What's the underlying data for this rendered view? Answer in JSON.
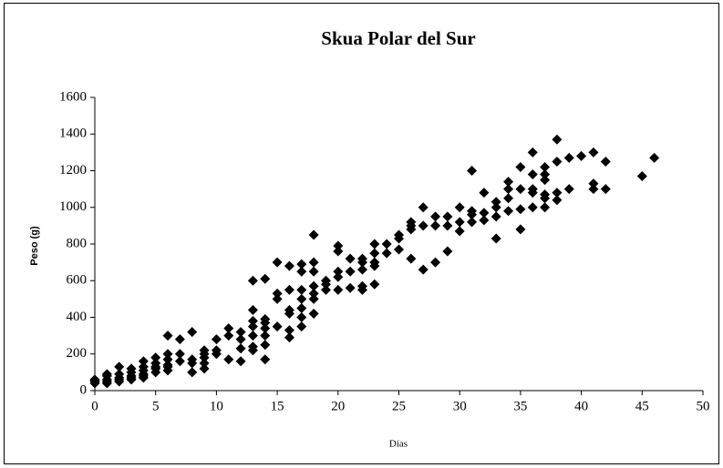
{
  "chart_data": {
    "type": "scatter",
    "title": "Skua Polar del Sur",
    "x_label": "Días",
    "y_label": "Peso (g)",
    "color": "#000000",
    "marker": "diamond",
    "xlim": [
      0,
      50
    ],
    "xticks": [
      0,
      5,
      10,
      15,
      20,
      25,
      30,
      35,
      40,
      45,
      50
    ],
    "ylim": [
      0,
      1600
    ],
    "yticks": [
      0,
      200,
      400,
      600,
      800,
      1000,
      1200,
      1400,
      1600
    ],
    "grid": false,
    "x": [
      0,
      0,
      0,
      0,
      1,
      1,
      1,
      1,
      1,
      2,
      2,
      2,
      2,
      2,
      3,
      3,
      3,
      3,
      3,
      4,
      4,
      4,
      4,
      4,
      4,
      5,
      5,
      5,
      5,
      5,
      6,
      6,
      6,
      6,
      6,
      6,
      7,
      7,
      7,
      8,
      8,
      8,
      8,
      9,
      9,
      9,
      9,
      9,
      10,
      10,
      10,
      11,
      11,
      11,
      12,
      12,
      12,
      12,
      13,
      13,
      13,
      13,
      13,
      13,
      13,
      14,
      14,
      14,
      14,
      14,
      14,
      14,
      15,
      15,
      15,
      15,
      16,
      16,
      16,
      16,
      16,
      16,
      17,
      17,
      17,
      17,
      17,
      17,
      17,
      18,
      18,
      18,
      18,
      18,
      18,
      18,
      19,
      19,
      19,
      20,
      20,
      20,
      20,
      20,
      21,
      21,
      21,
      22,
      22,
      22,
      22,
      22,
      23,
      23,
      23,
      23,
      23,
      24,
      24,
      25,
      25,
      25,
      26,
      26,
      26,
      26,
      27,
      27,
      27,
      28,
      28,
      28,
      29,
      29,
      29,
      30,
      30,
      30,
      31,
      31,
      31,
      31,
      32,
      32,
      32,
      33,
      33,
      33,
      33,
      34,
      34,
      34,
      34,
      35,
      35,
      35,
      35,
      36,
      36,
      36,
      36,
      36,
      37,
      37,
      37,
      37,
      37,
      37,
      38,
      38,
      38,
      38,
      39,
      39,
      40,
      41,
      41,
      41,
      42,
      42,
      45,
      46
    ],
    "values": [
      50,
      60,
      40,
      55,
      40,
      60,
      80,
      90,
      50,
      50,
      70,
      90,
      130,
      60,
      60,
      80,
      100,
      120,
      70,
      70,
      90,
      110,
      130,
      160,
      80,
      100,
      120,
      150,
      180,
      130,
      110,
      140,
      170,
      200,
      300,
      130,
      160,
      200,
      280,
      100,
      150,
      170,
      320,
      120,
      150,
      180,
      220,
      200,
      200,
      220,
      280,
      170,
      300,
      340,
      160,
      230,
      280,
      320,
      220,
      240,
      300,
      350,
      380,
      440,
      600,
      170,
      250,
      300,
      340,
      370,
      390,
      610,
      350,
      500,
      530,
      700,
      290,
      330,
      420,
      440,
      550,
      680,
      350,
      400,
      450,
      500,
      550,
      650,
      690,
      420,
      500,
      530,
      570,
      650,
      700,
      850,
      550,
      580,
      600,
      550,
      620,
      650,
      760,
      790,
      560,
      650,
      720,
      550,
      570,
      660,
      700,
      720,
      580,
      680,
      700,
      750,
      800,
      750,
      800,
      770,
      830,
      850,
      720,
      880,
      900,
      920,
      660,
      900,
      1000,
      700,
      900,
      950,
      760,
      900,
      950,
      870,
      920,
      1000,
      920,
      960,
      980,
      1200,
      930,
      970,
      1080,
      830,
      950,
      1000,
      1030,
      980,
      1050,
      1100,
      1140,
      880,
      990,
      1100,
      1220,
      1000,
      1080,
      1100,
      1180,
      1300,
      1000,
      1050,
      1070,
      1150,
      1180,
      1220,
      1040,
      1080,
      1250,
      1370,
      1100,
      1270,
      1280,
      1100,
      1130,
      1300,
      1100,
      1250,
      1170,
      1270
    ]
  }
}
